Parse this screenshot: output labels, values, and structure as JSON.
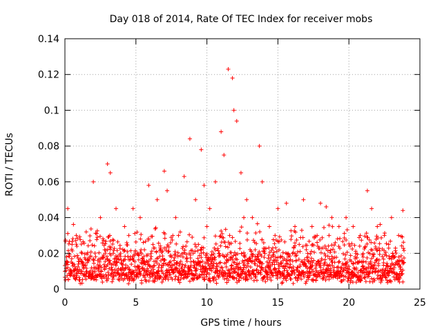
{
  "chart_data": {
    "type": "scatter",
    "title": "Day 018 of 2014, Rate Of TEC Index for receiver mobs",
    "xlabel": "GPS time / hours",
    "ylabel": "ROTI / TECUs",
    "xlim": [
      0,
      25
    ],
    "ylim": [
      0,
      0.14
    ],
    "x_ticks": [
      0,
      5,
      10,
      15,
      20,
      25
    ],
    "x_tick_labels": [
      "0",
      "5",
      "10",
      "15",
      "20",
      "25"
    ],
    "y_ticks": [
      0,
      0.02,
      0.04,
      0.06,
      0.08,
      0.1,
      0.12,
      0.14
    ],
    "y_tick_labels": [
      "0",
      "0.02",
      "0.04",
      "0.06",
      "0.08",
      "0.1",
      "0.12",
      "0.14"
    ],
    "grid": true,
    "marker": "plus",
    "color": "#ff0000",
    "series": [
      {
        "name": "ROTI",
        "x": [
          0.2,
          0.8,
          1.5,
          2.0,
          2.5,
          3.0,
          3.2,
          3.6,
          4.2,
          4.8,
          5.3,
          5.9,
          6.5,
          7.0,
          7.2,
          7.8,
          8.4,
          8.8,
          9.2,
          9.6,
          9.8,
          10.2,
          10.6,
          11.0,
          11.2,
          11.5,
          11.8,
          11.9,
          12.1,
          12.4,
          12.8,
          13.2,
          13.7,
          13.9,
          14.4,
          15.0,
          15.6,
          16.2,
          16.8,
          17.4,
          18.0,
          18.4,
          18.8,
          19.3,
          19.8,
          20.3,
          20.8,
          21.3,
          21.6,
          22.0,
          22.5,
          23.0,
          23.5,
          23.8,
          0.5,
          1.2,
          2.8,
          4.5,
          6.2,
          8.0,
          10.0,
          12.6,
          14.8,
          16.5,
          18.6,
          20.5,
          22.8,
          1.8,
          3.4,
          5.6,
          7.5,
          9.4,
          11.6,
          13.4,
          15.3,
          17.1,
          19.0,
          21.0,
          23.2
        ],
        "y": [
          0.045,
          0.03,
          0.032,
          0.06,
          0.04,
          0.07,
          0.065,
          0.045,
          0.035,
          0.045,
          0.04,
          0.058,
          0.05,
          0.066,
          0.055,
          0.04,
          0.063,
          0.084,
          0.05,
          0.078,
          0.058,
          0.045,
          0.06,
          0.088,
          0.075,
          0.123,
          0.118,
          0.1,
          0.094,
          0.065,
          0.05,
          0.04,
          0.08,
          0.06,
          0.035,
          0.045,
          0.048,
          0.035,
          0.05,
          0.035,
          0.048,
          0.046,
          0.04,
          0.035,
          0.04,
          0.035,
          0.03,
          0.055,
          0.045,
          0.035,
          0.03,
          0.04,
          0.03,
          0.044,
          0.025,
          0.02,
          0.022,
          0.03,
          0.025,
          0.03,
          0.035,
          0.04,
          0.03,
          0.025,
          0.03,
          0.02,
          0.025,
          0.018,
          0.02,
          0.022,
          0.018,
          0.025,
          0.03,
          0.022,
          0.018,
          0.02,
          0.015,
          0.018,
          0.012
        ]
      }
    ]
  }
}
